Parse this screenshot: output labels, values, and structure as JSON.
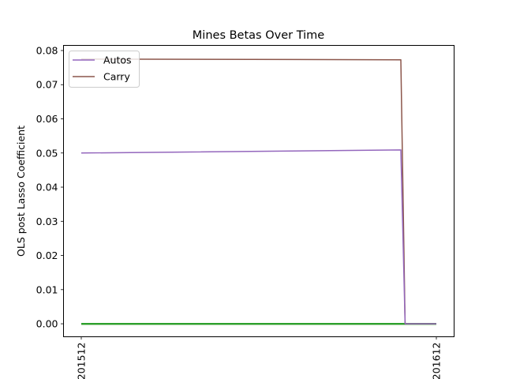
{
  "chart_data": {
    "type": "line",
    "title": "Mines Betas Over Time",
    "xlabel": "",
    "ylabel": "OLS post Lasso Coefficient",
    "x_ticks": [
      "201512",
      "201612"
    ],
    "ylim": [
      -0.0038,
      0.0815
    ],
    "y_ticks": [
      0.0,
      0.01,
      0.02,
      0.03,
      0.04,
      0.05,
      0.06,
      0.07,
      0.08
    ],
    "y_tick_labels": [
      "0.00",
      "0.01",
      "0.02",
      "0.03",
      "0.04",
      "0.05",
      "0.06",
      "0.07",
      "0.08"
    ],
    "x": [
      0,
      0.9,
      0.912,
      1
    ],
    "xlim": [
      -0.05,
      1.05
    ],
    "grid": false,
    "legend_position": "top-left",
    "series": [
      {
        "name": "Autos",
        "color": "#9467bd",
        "values": [
          0.05,
          0.0509,
          0.0,
          0.0
        ]
      },
      {
        "name": "Carry",
        "color": "#8c564b",
        "values": [
          0.0775,
          0.0773,
          0.0,
          0.0
        ]
      },
      {
        "color": "#2ca02c",
        "values": [
          0.0,
          0.0,
          0.0,
          0.0
        ]
      },
      {
        "color": "#bcbd22",
        "values": [
          0.0,
          0.0,
          0.0,
          0.0
        ]
      },
      {
        "color": "#17becf",
        "values": [
          0.0,
          0.0,
          0.0,
          0.0
        ]
      },
      {
        "color": "#7f7f7f",
        "values": [
          0.0,
          0.0,
          0.0,
          0.0
        ]
      }
    ]
  }
}
